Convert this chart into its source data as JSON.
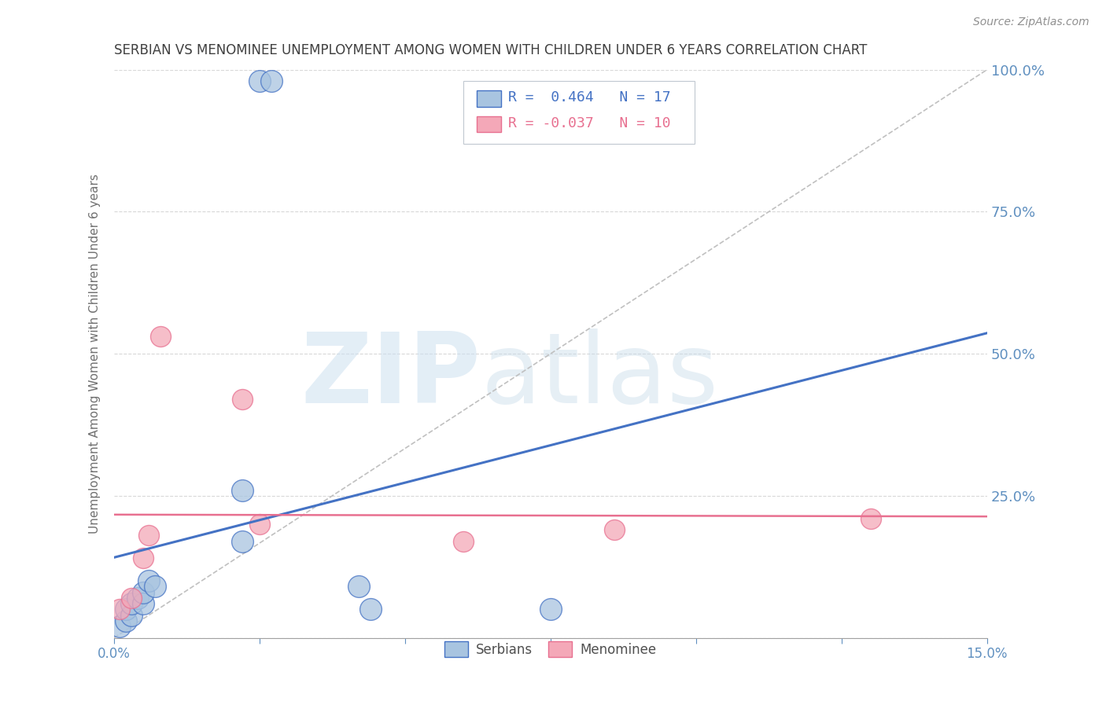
{
  "title": "SERBIAN VS MENOMINEE UNEMPLOYMENT AMONG WOMEN WITH CHILDREN UNDER 6 YEARS CORRELATION CHART",
  "source": "Source: ZipAtlas.com",
  "ylabel": "Unemployment Among Women with Children Under 6 years",
  "serbian_R": 0.464,
  "serbian_N": 17,
  "menominee_R": -0.037,
  "menominee_N": 10,
  "serbian_color": "#a8c4e0",
  "menominee_color": "#f4a8b8",
  "serbian_line_color": "#4472c4",
  "menominee_line_color": "#e87090",
  "title_color": "#404040",
  "axis_label_color": "#6090c0",
  "ytick_color": "#6090c0",
  "legend_R_color_serbian": "#4472c4",
  "legend_R_color_menominee": "#e87090",
  "watermark_zip": "ZIP",
  "watermark_atlas": "atlas",
  "serbian_x": [
    0.001,
    0.002,
    0.002,
    0.003,
    0.003,
    0.004,
    0.005,
    0.005,
    0.006,
    0.007,
    0.022,
    0.022,
    0.025,
    0.027,
    0.042,
    0.044,
    0.075
  ],
  "serbian_y": [
    0.02,
    0.03,
    0.05,
    0.04,
    0.06,
    0.07,
    0.06,
    0.08,
    0.1,
    0.09,
    0.26,
    0.17,
    0.98,
    0.98,
    0.09,
    0.05,
    0.05
  ],
  "menominee_x": [
    0.001,
    0.003,
    0.005,
    0.006,
    0.008,
    0.022,
    0.025,
    0.06,
    0.086,
    0.13
  ],
  "menominee_y": [
    0.05,
    0.07,
    0.14,
    0.18,
    0.53,
    0.42,
    0.2,
    0.17,
    0.19,
    0.21
  ],
  "xlim": [
    0.0,
    0.15
  ],
  "ylim": [
    0.0,
    1.0
  ],
  "yticks": [
    0.0,
    0.25,
    0.5,
    0.75,
    1.0
  ],
  "ytick_labels": [
    "",
    "25.0%",
    "50.0%",
    "75.0%",
    "100.0%"
  ],
  "xtick_positions": [
    0.0,
    0.025,
    0.05,
    0.075,
    0.1,
    0.125,
    0.15
  ],
  "xtick_labels": [
    "0.0%",
    "",
    "",
    "",
    "",
    "",
    "15.0%"
  ],
  "bubble_size_serbian": 400,
  "bubble_size_menominee": 350
}
